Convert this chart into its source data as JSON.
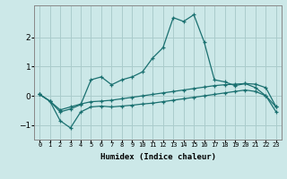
{
  "xlabel": "Humidex (Indice chaleur)",
  "ylabel": "",
  "background_color": "#cce8e8",
  "grid_color": "#aacccc",
  "line_color": "#1a7070",
  "xlim": [
    -0.5,
    23.5
  ],
  "ylim": [
    -1.5,
    3.1
  ],
  "yticks": [
    -1,
    0,
    1,
    2
  ],
  "xtick_labels": [
    "0",
    "1",
    "2",
    "3",
    "4",
    "5",
    "6",
    "7",
    "8",
    "9",
    "10",
    "11",
    "12",
    "13",
    "14",
    "15",
    "16",
    "17",
    "18",
    "19",
    "20",
    "21",
    "22",
    "23"
  ],
  "curve1_x": [
    0,
    1,
    2,
    3,
    4,
    5,
    6,
    7,
    8,
    9,
    10,
    11,
    12,
    13,
    14,
    15,
    16,
    17,
    18,
    19,
    20,
    21,
    22,
    23
  ],
  "curve1_y": [
    0.05,
    -0.18,
    -0.55,
    -0.45,
    -0.3,
    0.55,
    0.65,
    0.38,
    0.55,
    0.65,
    0.82,
    1.3,
    1.65,
    2.68,
    2.55,
    2.78,
    1.85,
    0.55,
    0.48,
    0.35,
    0.42,
    0.28,
    0.0,
    -0.38
  ],
  "curve2_x": [
    0,
    1,
    2,
    3,
    4,
    5,
    6,
    7,
    8,
    9,
    10,
    11,
    12,
    13,
    14,
    15,
    16,
    17,
    18,
    19,
    20,
    21,
    22,
    23
  ],
  "curve2_y": [
    0.05,
    -0.18,
    -0.48,
    -0.38,
    -0.28,
    -0.2,
    -0.18,
    -0.15,
    -0.1,
    -0.05,
    0.0,
    0.05,
    0.1,
    0.15,
    0.2,
    0.25,
    0.3,
    0.35,
    0.38,
    0.4,
    0.42,
    0.4,
    0.28,
    -0.38
  ],
  "curve3_x": [
    0,
    1,
    2,
    3,
    4,
    5,
    6,
    7,
    8,
    9,
    10,
    11,
    12,
    13,
    14,
    15,
    16,
    17,
    18,
    19,
    20,
    21,
    22,
    23
  ],
  "curve3_y": [
    0.05,
    -0.18,
    -0.85,
    -1.1,
    -0.55,
    -0.38,
    -0.35,
    -0.38,
    -0.35,
    -0.32,
    -0.28,
    -0.25,
    -0.2,
    -0.15,
    -0.1,
    -0.05,
    0.0,
    0.05,
    0.1,
    0.15,
    0.2,
    0.15,
    0.0,
    -0.55
  ]
}
